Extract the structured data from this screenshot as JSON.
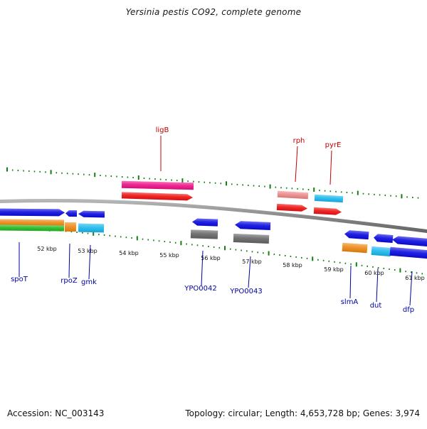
{
  "title": "Yersinia pestis CO92, complete genome",
  "footer": {
    "accession": "Accession: NC_003143",
    "summary": "Topology: circular; Length: 4,653,728 bp; Genes: 3,974"
  },
  "colors": {
    "backbone": "#8c8c8c",
    "tick_major": "#108010",
    "tick_minor": "#108010",
    "label_blue": "#0000a0",
    "label_red": "#c00000",
    "gene_blue": "#0a0ae0",
    "gene_red": "#ee1111",
    "gene_pink": "#ee1188",
    "gene_salmon": "#ee8888",
    "gene_cyan": "#1ab8ee",
    "gene_orange": "#ee8811",
    "gene_green": "#22bb22",
    "gene_gray": "#666666"
  },
  "scale_labels": [
    "52 kbp",
    "53 kbp",
    "54 kbp",
    "55 kbp",
    "56 kbp",
    "57 kbp",
    "58 kbp",
    "59 kbp",
    "60 kbp",
    "61 kbp"
  ],
  "gene_labels": {
    "top": [
      "ligB",
      "rph",
      "pyrE"
    ],
    "bottom": [
      "spoT",
      "rpoZ",
      "gmk",
      "YPO0042",
      "YPO0043",
      "slmA",
      "dut",
      "dfp"
    ]
  }
}
